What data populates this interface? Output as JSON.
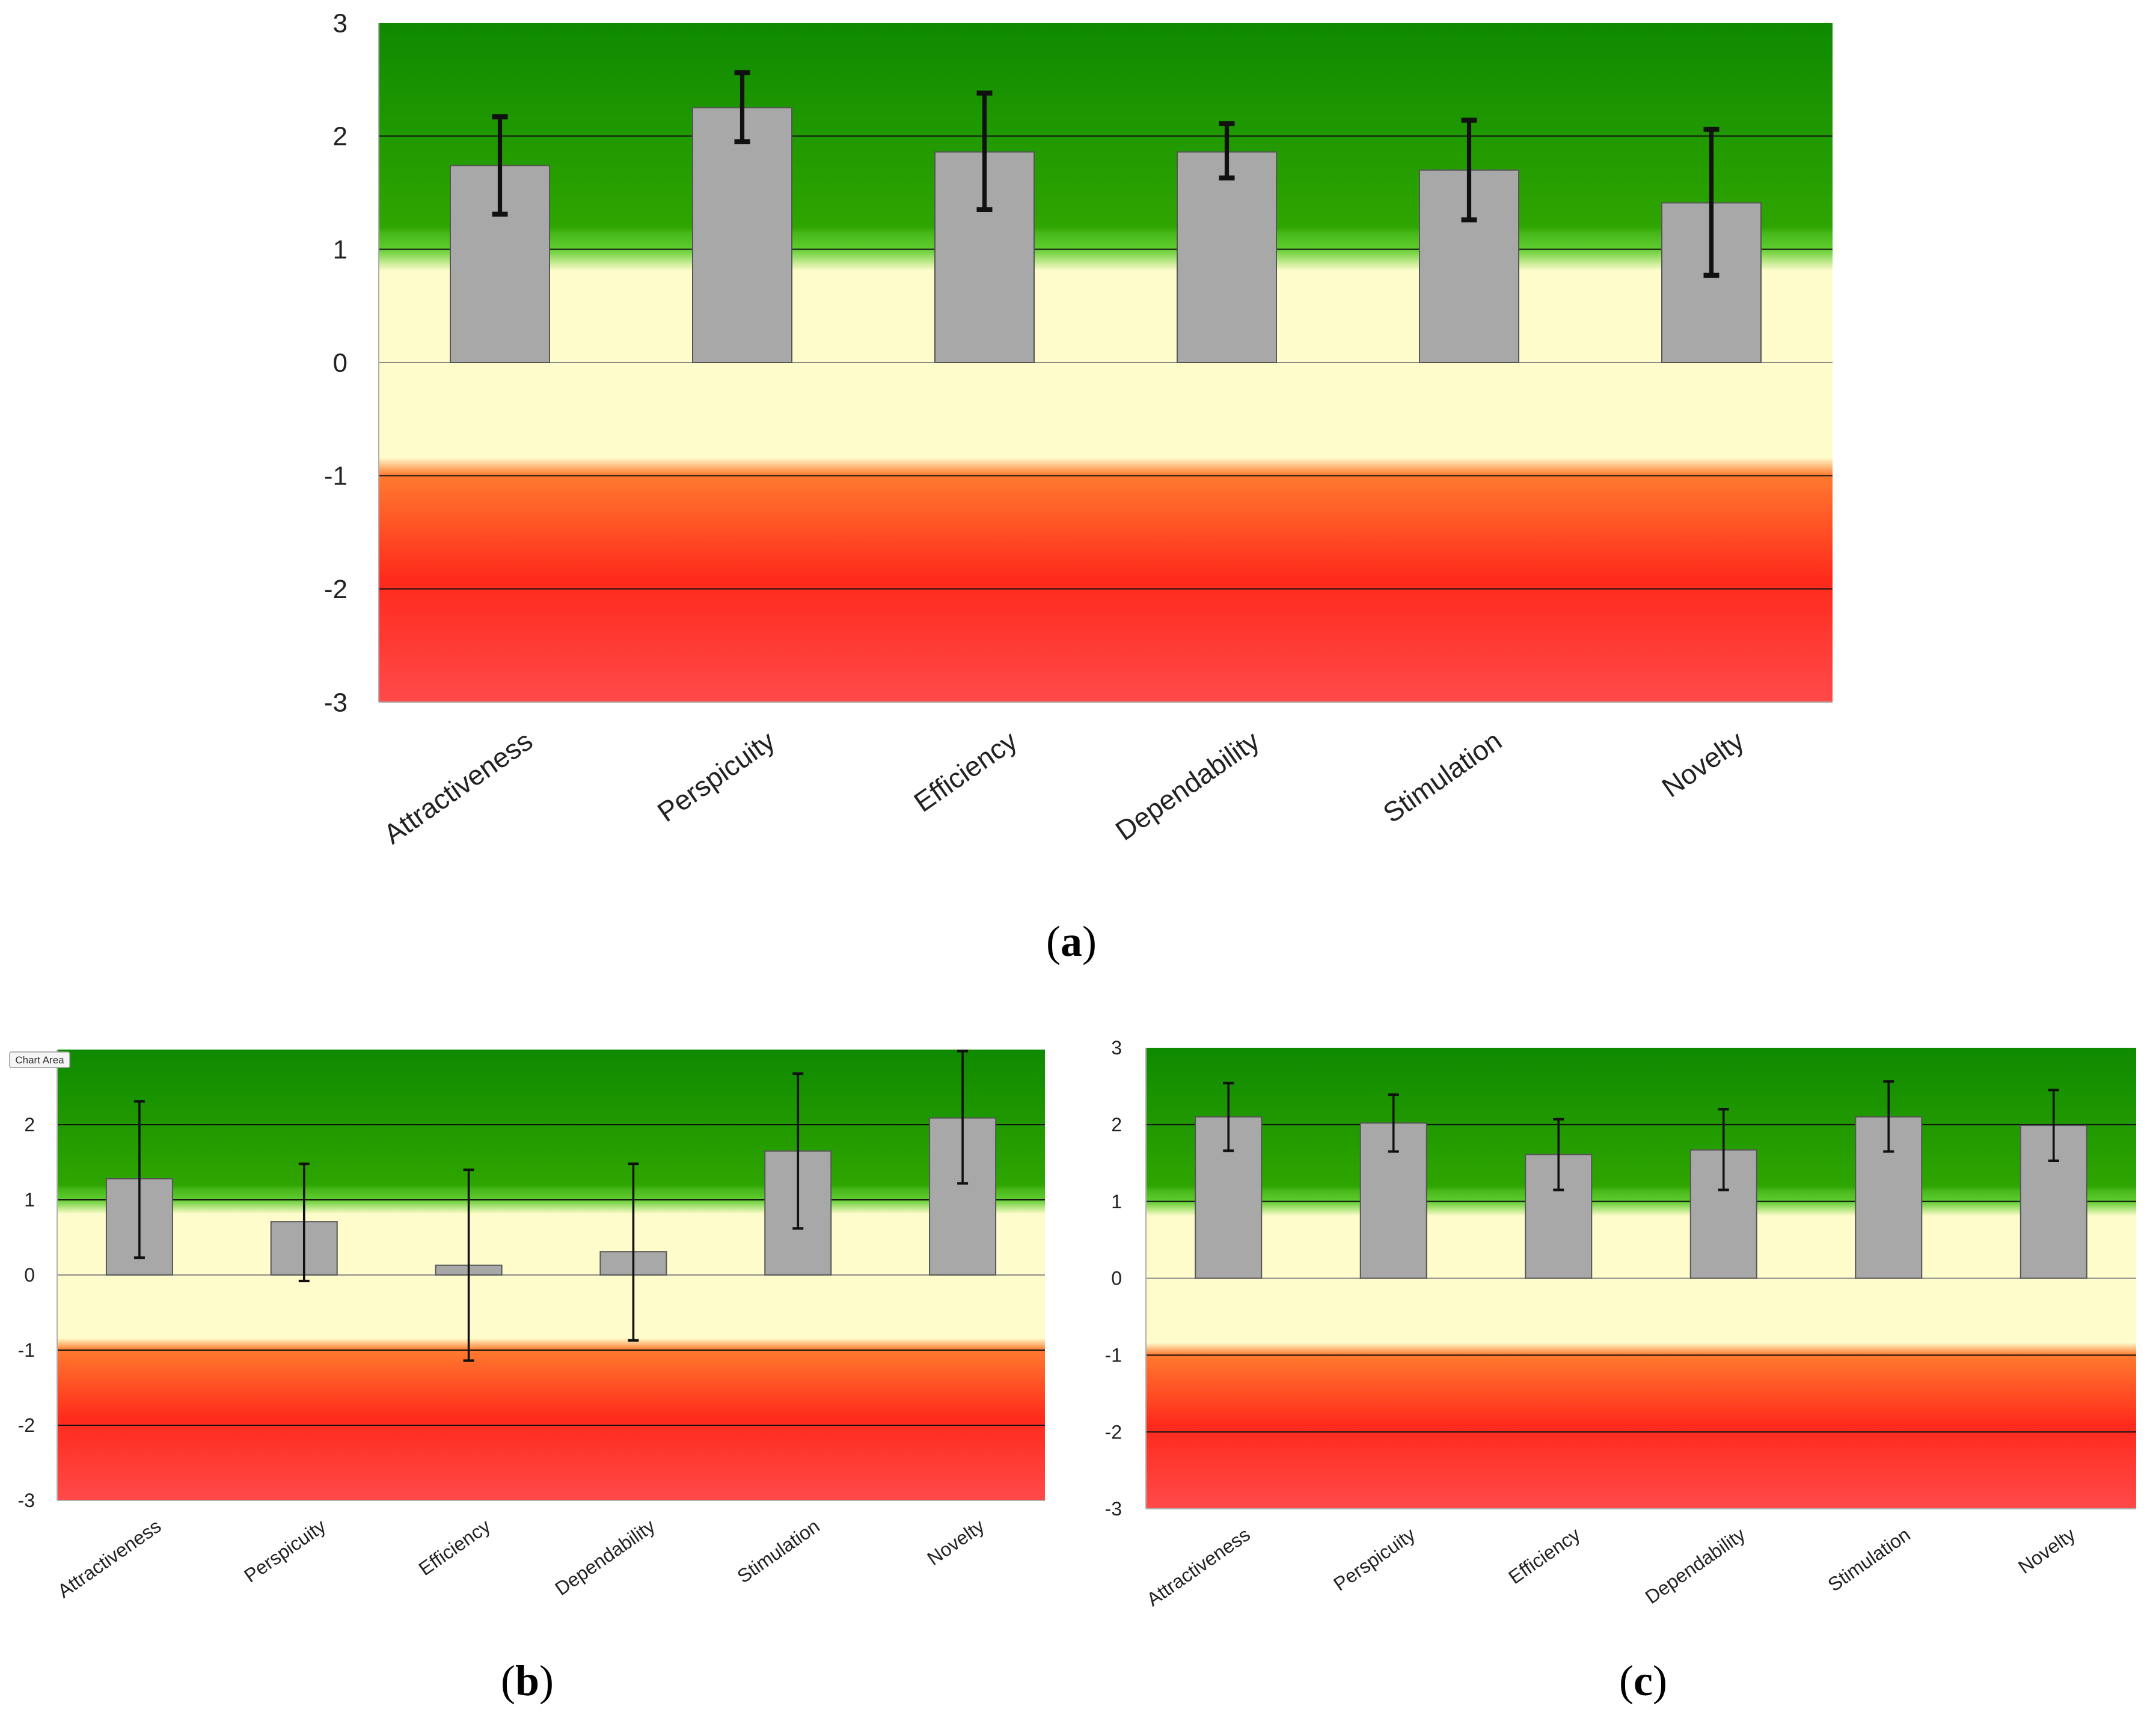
{
  "figure": {
    "panels": [
      "(a)",
      "(b)",
      "(c)"
    ]
  },
  "colors": {
    "bar_fill": "#a8a8a8",
    "bar_stroke": "#555555",
    "error_bar": "#111111",
    "good_green_top": "#0f8a00",
    "good_green_bottom": "#5fcc2e",
    "neutral_yellow": "#fffccc",
    "bad_orange": "#ff7a2e",
    "bad_red": "#ff2a1c",
    "bad_red_bottom": "#ff4a4a",
    "gridline": "#111111"
  },
  "chart_data": [
    {
      "id": "a",
      "type": "bar",
      "label": "(a)",
      "categories": [
        "Attractiveness",
        "Perspicuity",
        "Efficiency",
        "Dependability",
        "Stimulation",
        "Novelty"
      ],
      "values": [
        1.74,
        2.25,
        1.86,
        1.86,
        1.7,
        1.41
      ],
      "error_low": [
        1.31,
        1.95,
        1.35,
        1.63,
        1.26,
        0.77
      ],
      "error_high": [
        2.17,
        2.56,
        2.38,
        2.11,
        2.14,
        2.06
      ],
      "yticks": [
        "3",
        "2",
        "1",
        "0",
        "-1",
        "-2",
        "-3"
      ],
      "ylim": [
        -3,
        3
      ],
      "bands": [
        {
          "name": "good",
          "range": [
            1,
            3
          ]
        },
        {
          "name": "neutral",
          "range": [
            -1,
            1
          ]
        },
        {
          "name": "bad",
          "range": [
            -3,
            -1
          ]
        }
      ]
    },
    {
      "id": "b",
      "type": "bar",
      "label": "(b)",
      "chart_area_tooltip": "Chart Area",
      "categories": [
        "Attractiveness",
        "Perspicuity",
        "Efficiency",
        "Dependability",
        "Stimulation",
        "Novelty"
      ],
      "values": [
        1.28,
        0.71,
        0.13,
        0.31,
        1.65,
        2.09
      ],
      "error_low": [
        0.23,
        -0.08,
        -1.14,
        -0.87,
        0.62,
        1.22
      ],
      "error_high": [
        2.31,
        1.48,
        1.4,
        1.48,
        2.68,
        2.98
      ],
      "yticks": [
        "2",
        "1",
        "0",
        "-1",
        "-2",
        "-3"
      ],
      "ylim": [
        -3,
        3
      ],
      "bands": [
        {
          "name": "good",
          "range": [
            1,
            3
          ]
        },
        {
          "name": "neutral",
          "range": [
            -1,
            1
          ]
        },
        {
          "name": "bad",
          "range": [
            -3,
            -1
          ]
        }
      ]
    },
    {
      "id": "c",
      "type": "bar",
      "label": "(c)",
      "categories": [
        "Attractiveness",
        "Perspicuity",
        "Efficiency",
        "Dependability",
        "Stimulation",
        "Novelty"
      ],
      "values": [
        2.1,
        2.02,
        1.61,
        1.67,
        2.1,
        1.99
      ],
      "error_low": [
        1.66,
        1.65,
        1.15,
        1.15,
        1.65,
        1.53
      ],
      "error_high": [
        2.54,
        2.39,
        2.07,
        2.2,
        2.56,
        2.45
      ],
      "yticks": [
        "3",
        "2",
        "1",
        "0",
        "-1",
        "-2",
        "-3"
      ],
      "ylim": [
        -3,
        3
      ],
      "bands": [
        {
          "name": "good",
          "range": [
            1,
            3
          ]
        },
        {
          "name": "neutral",
          "range": [
            -1,
            1
          ]
        },
        {
          "name": "bad",
          "range": [
            -3,
            -1
          ]
        }
      ]
    }
  ]
}
